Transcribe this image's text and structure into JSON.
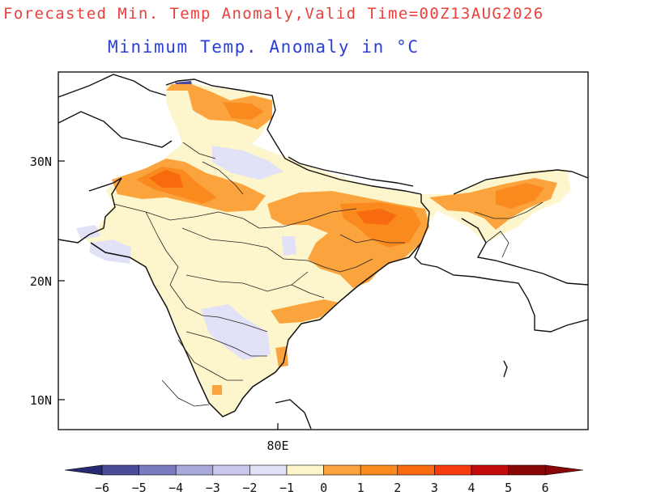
{
  "title": "Forecasted Min. Temp Anomaly,Valid Time=00Z13AUG2026",
  "subtitle": "Minimum Temp. Anomaly in °C",
  "map": {
    "region": "India",
    "lat_ticks": [
      "30N",
      "20N",
      "10N"
    ],
    "lon_ticks": [
      "80E"
    ]
  },
  "colorbar": {
    "labels": [
      "−6",
      "−5",
      "−4",
      "−3",
      "−2",
      "−1",
      "0",
      "1",
      "2",
      "3",
      "4",
      "5",
      "6"
    ],
    "colors": [
      "#262a6e",
      "#4a4b99",
      "#7b7cbf",
      "#a9a9d9",
      "#c8c8ec",
      "#e1e1f7",
      "#fdf5cb",
      "#fba43e",
      "#fa8a1e",
      "#f86a10",
      "#f43c0f",
      "#c40a0a",
      "#8a0606"
    ]
  }
}
